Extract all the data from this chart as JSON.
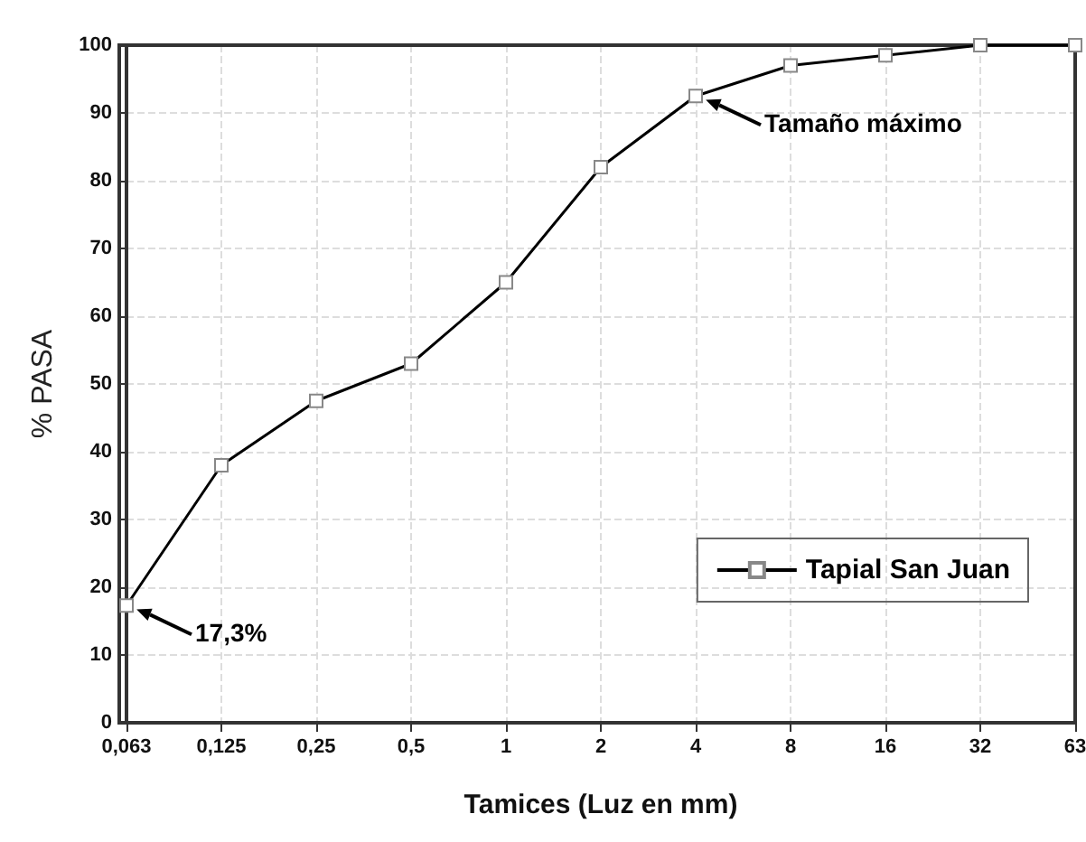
{
  "chart_data": {
    "type": "line",
    "xlabel": "Tamices (Luz en mm)",
    "ylabel": "% PASA",
    "categories": [
      "0,063",
      "0,125",
      "0,25",
      "0,5",
      "1",
      "2",
      "4",
      "8",
      "16",
      "32",
      "63"
    ],
    "series": [
      {
        "name": "Tapial San Juan",
        "color": "#000000",
        "values": [
          17.3,
          38,
          47.5,
          53,
          65,
          82,
          92.5,
          97,
          98.5,
          100,
          100
        ]
      }
    ],
    "ylim": [
      0,
      100
    ],
    "yticks": [
      0,
      10,
      20,
      30,
      40,
      50,
      60,
      70,
      80,
      90,
      100
    ],
    "grid": true,
    "legend": "bottom right",
    "marker": "square",
    "line_style": "solid",
    "annotations": [
      {
        "text": "17,3%",
        "x": "0,063",
        "y": 17.3
      },
      {
        "text": "Tamaño máximo",
        "x": "4",
        "y": 92.5
      }
    ]
  }
}
